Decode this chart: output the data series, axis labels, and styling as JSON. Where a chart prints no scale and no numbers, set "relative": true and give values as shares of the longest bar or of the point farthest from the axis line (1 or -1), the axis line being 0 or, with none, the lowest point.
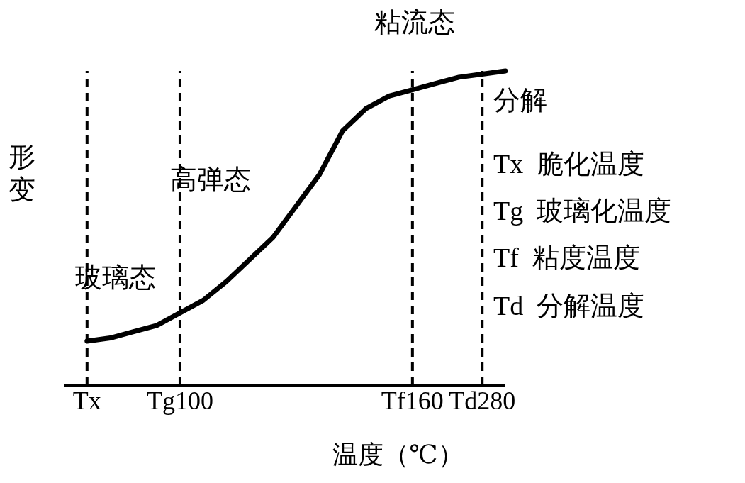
{
  "chart_data": {
    "type": "line",
    "relative": true,
    "xlabel": "温度（℃）",
    "ylabel": "形变",
    "categories": [
      null,
      "Tx",
      null,
      null,
      null,
      "Tg100",
      null,
      null,
      null,
      null,
      null,
      null,
      null,
      null,
      null,
      "Tf160",
      null,
      null,
      "Td280",
      null
    ],
    "series": [
      {
        "color": "#000000",
        "values": [
          null,
          0.14,
          0.15,
          0.17,
          0.19,
          0.23,
          0.27,
          0.33,
          0.4,
          0.47,
          0.57,
          0.67,
          0.81,
          0.88,
          0.92,
          0.94,
          0.96,
          0.98,
          0.99,
          1
        ]
      }
    ],
    "ref_lines": [
      {
        "axis": "x",
        "value": "Tx",
        "color": "#000000",
        "line_style": "dashed"
      },
      {
        "axis": "x",
        "value": "Tg100",
        "color": "#000000",
        "line_style": "dashed"
      },
      {
        "axis": "x",
        "value": "Tf160",
        "color": "#000000",
        "line_style": "dashed"
      },
      {
        "axis": "x",
        "value": "Td280",
        "color": "#000000",
        "line_style": "dashed"
      }
    ],
    "annotations": [
      "玻璃态",
      "高弹态",
      "粘流态",
      "分解",
      "Tx  脆化温度",
      "Tg  玻璃化温度",
      "Tf  粘度温度",
      "Td  分解温度"
    ],
    "grid": false,
    "marker": "none",
    "line_style": "solid"
  }
}
